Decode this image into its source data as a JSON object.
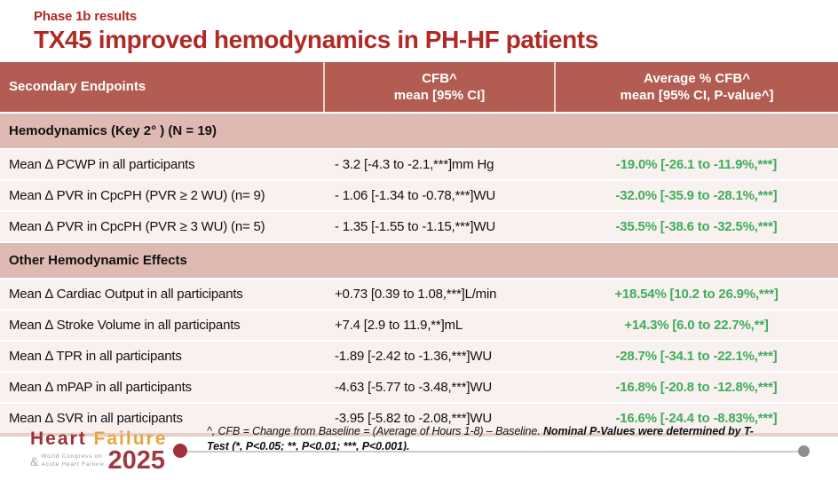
{
  "slide": {
    "kicker": "Phase 1b results",
    "title": "TX45 improved hemodynamics in PH-HF patients"
  },
  "table": {
    "headers": {
      "col1": "Secondary Endpoints",
      "col2_line1": "CFB^",
      "col2_line2": "mean [95% CI]",
      "col3_line1": "Average % CFB^",
      "col3_line2": "mean [95% CI, P-value^]"
    },
    "sections": [
      {
        "label": "Hemodynamics (Key 2° ) (N = 19)",
        "rows": [
          {
            "endpoint": "Mean ∆ PCWP in all participants",
            "cfb": "- 3.2 [-4.3 to -2.1,***]mm Hg",
            "pct": "-19.0% [-26.1 to -11.9%,***]"
          },
          {
            "endpoint": "Mean ∆ PVR in CpcPH (PVR ≥ 2 WU) (n= 9)",
            "cfb": "- 1.06 [-1.34 to -0.78,***]WU",
            "pct": "-32.0% [-35.9 to -28.1%,***]"
          },
          {
            "endpoint": "Mean ∆ PVR in CpcPH (PVR ≥ 3 WU) (n= 5)",
            "cfb": "- 1.35 [-1.55 to -1.15,***]WU",
            "pct": "-35.5% [-38.6 to -32.5%,***]"
          }
        ]
      },
      {
        "label": "Other Hemodynamic Effects",
        "rows": [
          {
            "endpoint": "Mean ∆ Cardiac Output in all participants",
            "cfb": "+0.73 [0.39 to 1.08,***]L/min",
            "pct": "+18.54% [10.2 to 26.9%,***]"
          },
          {
            "endpoint": "Mean ∆ Stroke Volume in all participants",
            "cfb": "+7.4 [2.9 to 11.9,**]mL",
            "pct": "+14.3% [6.0 to 22.7%,**]"
          },
          {
            "endpoint": "Mean ∆ TPR in all participants",
            "cfb": "-1.89 [-2.42 to -1.36,***]WU",
            "pct": "-28.7% [-34.1 to -22.1%,***]"
          },
          {
            "endpoint": "Mean ∆ mPAP in all participants",
            "cfb": "-4.63 [-5.77 to -3.48,***]WU",
            "pct": "-16.8% [-20.8 to -12.8%,***]"
          },
          {
            "endpoint": "Mean ∆ SVR in all participants",
            "cfb": "-3.95 [-5.82 to -2.08,***]WU",
            "pct": "-16.6% [-24.4 to -8.83%,***]"
          }
        ]
      }
    ]
  },
  "footer": {
    "logo": {
      "word1": "Heart",
      "word2": "Failure",
      "amp": "&",
      "sub1": "World Congress on",
      "sub2": "Acute Heart Failure",
      "year": "2025"
    },
    "note_regular": "^, CFB = Change from Baseline = (Average of Hours 1-8) – Baseline. ",
    "note_bold": "Nominal P-Values were determined by T-Test (*, P<0.05; **, P<0.01; ***, P<0.001)."
  },
  "colors": {
    "title_red": "#B02A25",
    "header_bg": "#B25C52",
    "section_bg": "#DEBAB3",
    "row_bg": "#F9F1EF",
    "green": "#3EAD5C",
    "logo_red": "#9E3239",
    "logo_gold": "#E8A53E",
    "logo_year_red": "#A23840"
  }
}
